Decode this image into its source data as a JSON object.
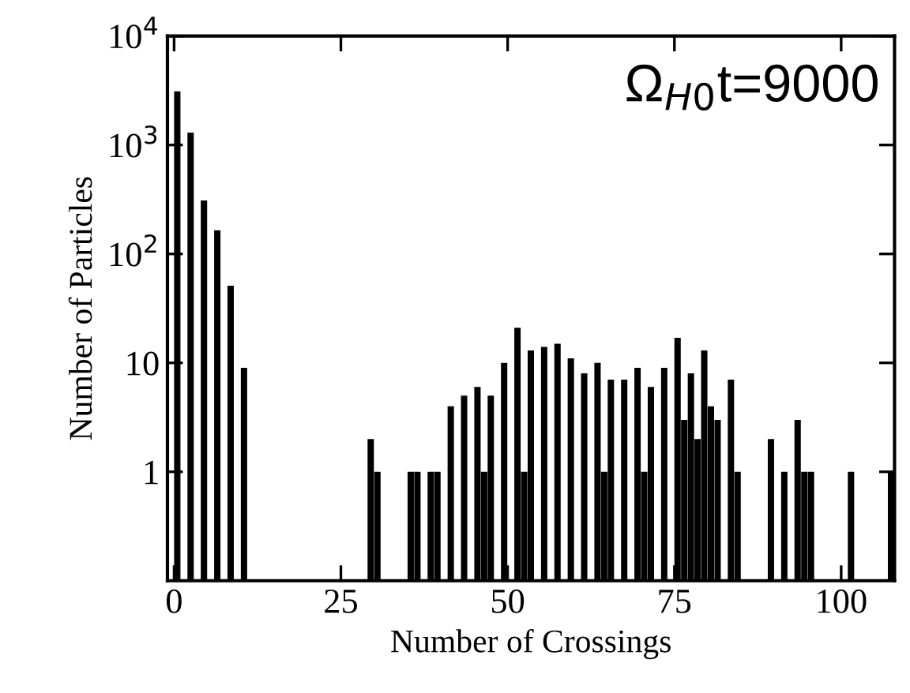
{
  "chart_data": {
    "type": "histogram",
    "xlabel": "Number of Crossings",
    "ylabel": "Number of Particles",
    "annotations": [
      "Ω$_{H0}$t=9000"
    ],
    "bins": [
      0,
      1,
      2,
      3,
      4,
      5,
      6,
      7,
      8,
      9,
      10,
      11,
      12,
      13,
      14,
      15,
      16,
      17,
      18,
      19,
      20,
      21,
      22,
      23,
      24,
      25,
      26,
      27,
      28,
      29,
      30,
      31,
      32,
      33,
      34,
      35,
      36,
      37,
      38,
      39,
      40,
      41,
      42,
      43,
      44,
      45,
      46,
      47,
      48,
      49,
      50,
      51,
      52,
      53,
      54,
      55,
      56,
      57,
      58,
      59,
      60,
      61,
      62,
      63,
      64,
      65,
      66,
      67,
      68,
      69,
      70,
      71,
      72,
      73,
      74,
      75,
      76,
      77,
      78,
      79,
      80,
      81,
      82,
      83,
      84,
      85,
      86,
      87,
      88,
      89,
      90,
      91,
      92,
      93,
      94,
      95,
      96,
      97,
      98,
      99,
      100,
      101,
      102,
      103,
      104,
      105,
      106,
      107,
      108
    ],
    "values": [
      3100,
      null,
      1300,
      null,
      310,
      null,
      165,
      null,
      51,
      null,
      9,
      null,
      null,
      null,
      null,
      null,
      null,
      null,
      null,
      null,
      null,
      null,
      null,
      null,
      null,
      null,
      null,
      null,
      null,
      2,
      1,
      null,
      null,
      null,
      null,
      1,
      1,
      null,
      1,
      1,
      null,
      4,
      null,
      5,
      null,
      6,
      1,
      5,
      null,
      10,
      null,
      21,
      1,
      13,
      null,
      14,
      null,
      15,
      null,
      11,
      null,
      8,
      null,
      10,
      1,
      7,
      null,
      7,
      null,
      9,
      1,
      6,
      null,
      9,
      null,
      17,
      3,
      8,
      2,
      13,
      4,
      3,
      null,
      7,
      1,
      null,
      null,
      null,
      null,
      2,
      null,
      1,
      null,
      3,
      1,
      1,
      null,
      null,
      null,
      null,
      null,
      1,
      null,
      null,
      null,
      null,
      null,
      1
    ],
    "color": "#000000",
    "log": "y",
    "xlim": [
      -1,
      108
    ],
    "ylim": [
      0.1,
      10000
    ],
    "xticks": [
      0,
      25,
      50,
      75,
      100
    ],
    "yticks": [
      1,
      10,
      {
        "value": 100,
        "label": "10$^{2}$"
      },
      {
        "value": 1000,
        "label": "10$^{3}$"
      },
      {
        "value": 10000,
        "label": "10$^{4}$"
      }
    ],
    "grid": false
  }
}
